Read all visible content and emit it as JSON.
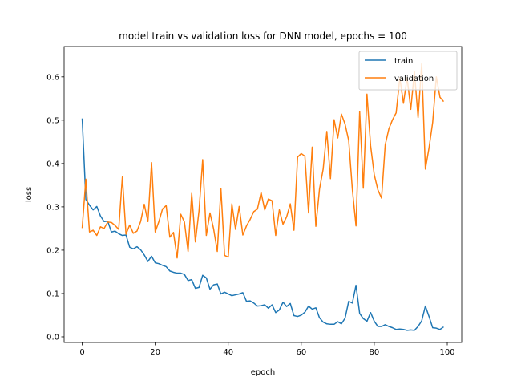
{
  "chart_data": {
    "type": "line",
    "title": "model train vs validation loss for DNN model, epochs = 100",
    "xlabel": "epoch",
    "ylabel": "loss",
    "xlim": [
      -4.95,
      103.95
    ],
    "ylim": [
      -0.013,
      0.67
    ],
    "xticks": [
      0,
      20,
      40,
      60,
      80,
      100
    ],
    "yticks": [
      0.0,
      0.1,
      0.2,
      0.3,
      0.4,
      0.5,
      0.6
    ],
    "ytick_labels": [
      "0.0",
      "0.1",
      "0.2",
      "0.3",
      "0.4",
      "0.5",
      "0.6"
    ],
    "grid": false,
    "legend_position": "top-right",
    "series": [
      {
        "name": "train",
        "color": "#1f77b4",
        "values": [
          0.504,
          0.317,
          0.304,
          0.293,
          0.301,
          0.279,
          0.266,
          0.267,
          0.242,
          0.244,
          0.238,
          0.234,
          0.235,
          0.207,
          0.203,
          0.208,
          0.201,
          0.189,
          0.174,
          0.186,
          0.171,
          0.169,
          0.165,
          0.162,
          0.152,
          0.149,
          0.147,
          0.147,
          0.144,
          0.13,
          0.132,
          0.112,
          0.114,
          0.142,
          0.136,
          0.11,
          0.12,
          0.122,
          0.099,
          0.103,
          0.099,
          0.095,
          0.097,
          0.099,
          0.102,
          0.082,
          0.083,
          0.078,
          0.071,
          0.072,
          0.074,
          0.066,
          0.074,
          0.056,
          0.062,
          0.08,
          0.07,
          0.077,
          0.049,
          0.047,
          0.05,
          0.057,
          0.071,
          0.064,
          0.067,
          0.044,
          0.034,
          0.03,
          0.029,
          0.029,
          0.035,
          0.03,
          0.043,
          0.082,
          0.078,
          0.119,
          0.054,
          0.042,
          0.036,
          0.056,
          0.036,
          0.024,
          0.024,
          0.028,
          0.024,
          0.021,
          0.017,
          0.018,
          0.017,
          0.015,
          0.016,
          0.015,
          0.024,
          0.037,
          0.071,
          0.047,
          0.021,
          0.02,
          0.017,
          0.023
        ]
      },
      {
        "name": "validation",
        "color": "#ff7f0e",
        "values": [
          0.251,
          0.364,
          0.242,
          0.246,
          0.234,
          0.254,
          0.25,
          0.265,
          0.264,
          0.257,
          0.248,
          0.369,
          0.237,
          0.258,
          0.239,
          0.244,
          0.266,
          0.306,
          0.266,
          0.402,
          0.242,
          0.266,
          0.295,
          0.303,
          0.23,
          0.241,
          0.182,
          0.283,
          0.265,
          0.197,
          0.331,
          0.219,
          0.291,
          0.409,
          0.234,
          0.286,
          0.249,
          0.197,
          0.342,
          0.188,
          0.184,
          0.307,
          0.248,
          0.301,
          0.235,
          0.256,
          0.271,
          0.289,
          0.295,
          0.333,
          0.293,
          0.318,
          0.314,
          0.234,
          0.293,
          0.26,
          0.277,
          0.307,
          0.246,
          0.415,
          0.423,
          0.417,
          0.286,
          0.438,
          0.255,
          0.341,
          0.387,
          0.474,
          0.365,
          0.501,
          0.459,
          0.514,
          0.491,
          0.453,
          0.34,
          0.256,
          0.52,
          0.343,
          0.56,
          0.441,
          0.374,
          0.339,
          0.32,
          0.443,
          0.48,
          0.501,
          0.517,
          0.598,
          0.539,
          0.598,
          0.525,
          0.612,
          0.506,
          0.63,
          0.387,
          0.436,
          0.495,
          0.6,
          0.553,
          0.543
        ]
      }
    ]
  }
}
